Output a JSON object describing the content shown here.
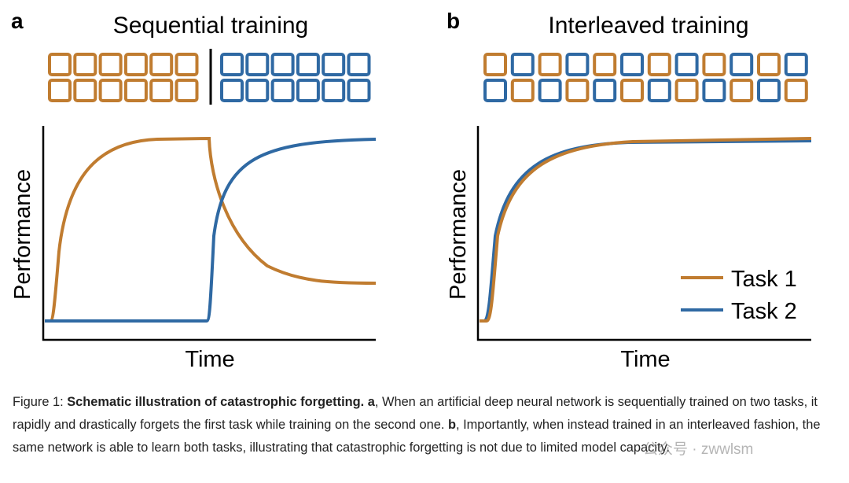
{
  "panel_a": {
    "label": "a",
    "title": "Sequential training",
    "y_label": "Performance",
    "x_label": "Time"
  },
  "panel_b": {
    "label": "b",
    "title": "Interleaved training",
    "y_label": "Performance",
    "x_label": "Time",
    "legend": [
      "Task 1",
      "Task 2"
    ]
  },
  "caption": {
    "label": "Figure 1: ",
    "heading": "Schematic illustration of catastrophic forgetting.",
    "a_label": " a",
    "a_text": ", When an artificial deep neural network is sequentially trained on two tasks, it rapidly and drastically forgets the first task while training on the second one.",
    "b_label": " b",
    "b_text": ", Importantly, when instead trained in an interleaved fashion, the same network is able to learn both tasks, illustrating that catastrophic forgetting is not due to limited model capacity."
  },
  "watermark": "公众号 · zwwlsm"
}
